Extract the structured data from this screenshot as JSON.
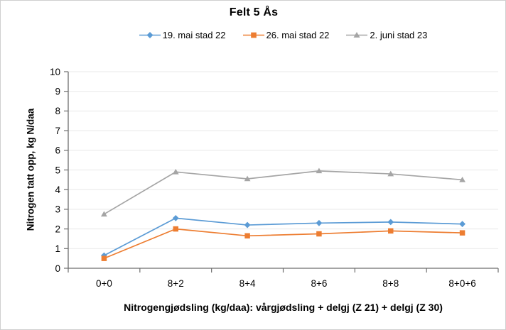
{
  "chart_data": {
    "type": "line",
    "title": "Felt 5 Ås",
    "xlabel": "Nitrogengjødsling (kg/daa): vårgjødsling + delgj (Z 21) + delgj (Z 30)",
    "ylabel": "Nitrogen tatt opp, kg N/daa",
    "categories": [
      "0+0",
      "8+2",
      "8+4",
      "8+6",
      "8+8",
      "8+0+6"
    ],
    "series": [
      {
        "name": "19. mai stad 22",
        "color": "#5B9BD5",
        "marker": "diamond",
        "values": [
          0.65,
          2.55,
          2.2,
          2.3,
          2.35,
          2.25
        ]
      },
      {
        "name": "26. mai stad 22",
        "color": "#ED7D31",
        "marker": "square",
        "values": [
          0.5,
          2.0,
          1.65,
          1.75,
          1.9,
          1.8
        ]
      },
      {
        "name": "2. juni stad 23",
        "color": "#A5A5A5",
        "marker": "triangle",
        "values": [
          2.75,
          4.9,
          4.55,
          4.95,
          4.8,
          4.5
        ]
      }
    ],
    "ylim": [
      0,
      10
    ],
    "ytick_step": 1,
    "grid": true,
    "legend_position": "top",
    "colors": {
      "axis": "#6e6e6e",
      "gridline": "#e8e8e8",
      "text": "#000000",
      "background": "#ffffff",
      "frame_border": "#cfcfcf"
    }
  }
}
